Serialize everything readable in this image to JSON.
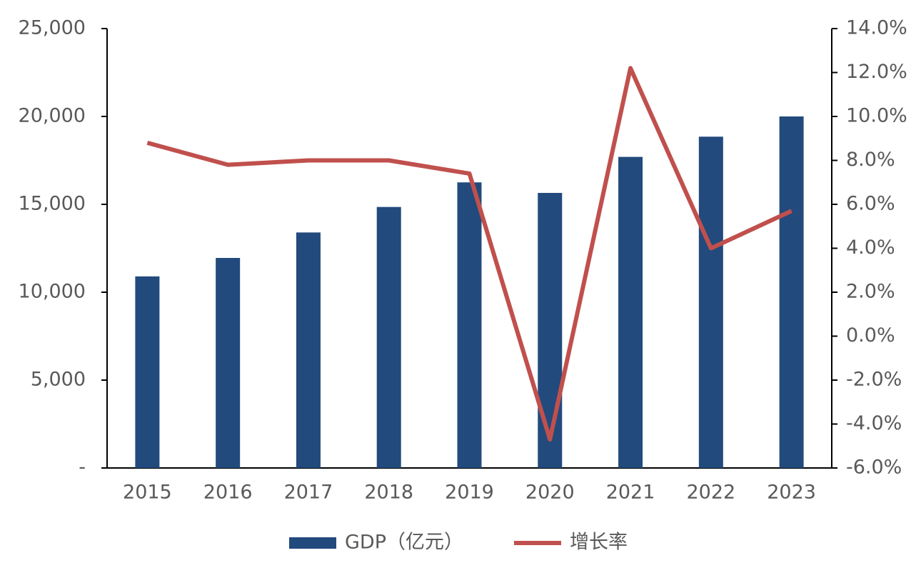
{
  "chart_data": {
    "type": "bar",
    "categories": [
      "2015",
      "2016",
      "2017",
      "2018",
      "2019",
      "2020",
      "2021",
      "2022",
      "2023"
    ],
    "series": [
      {
        "name": "GDP（亿元）",
        "type": "bar",
        "color": "#224a7c",
        "values": [
          10900,
          11950,
          13400,
          14850,
          16250,
          15650,
          17700,
          18850,
          20000
        ]
      },
      {
        "name": "增长率",
        "type": "line",
        "axis": "y2",
        "color": "#c0504d",
        "values": [
          8.8,
          7.8,
          8.0,
          8.0,
          7.4,
          -4.7,
          12.2,
          4.0,
          5.7
        ]
      }
    ],
    "ylim": [
      0,
      25000
    ],
    "yticks": [
      {
        "value": 0,
        "label": "-"
      },
      {
        "value": 5000,
        "label": "5,000"
      },
      {
        "value": 10000,
        "label": "10,000"
      },
      {
        "value": 15000,
        "label": "15,000"
      },
      {
        "value": 20000,
        "label": "20,000"
      },
      {
        "value": 25000,
        "label": "25,000"
      }
    ],
    "y2lim": [
      -6,
      14
    ],
    "y2ticks": [
      {
        "value": -6,
        "label": "-6.0%"
      },
      {
        "value": -4,
        "label": "-4.0%"
      },
      {
        "value": -2,
        "label": "-2.0%"
      },
      {
        "value": 0,
        "label": "0.0%"
      },
      {
        "value": 2,
        "label": "2.0%"
      },
      {
        "value": 4,
        "label": "4.0%"
      },
      {
        "value": 6,
        "label": "6.0%"
      },
      {
        "value": 8,
        "label": "8.0%"
      },
      {
        "value": 10,
        "label": "10.0%"
      },
      {
        "value": 12,
        "label": "12.0%"
      },
      {
        "value": 14,
        "label": "14.0%"
      }
    ],
    "grid": false,
    "legend": "bottom"
  }
}
